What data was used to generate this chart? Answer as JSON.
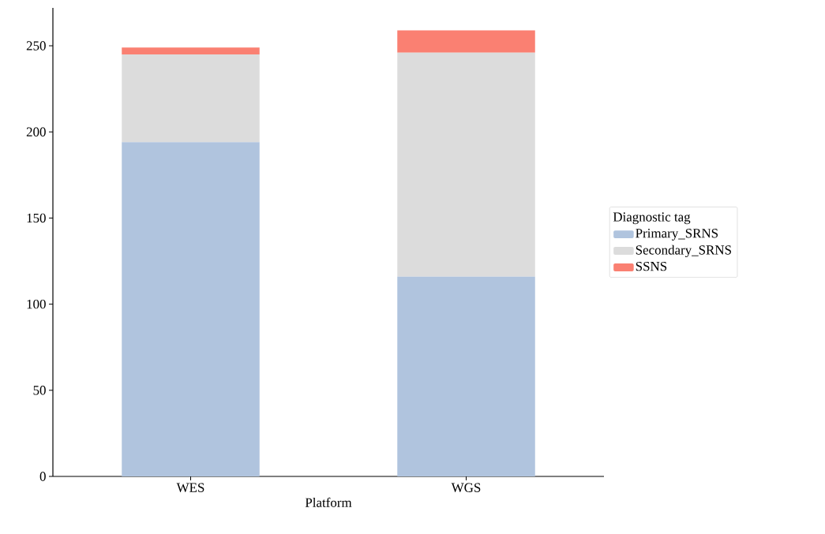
{
  "chart_data": {
    "type": "bar",
    "stacked": true,
    "xlabel": "Platform",
    "legend_title": "Diagnostic tag",
    "legend": "right",
    "categories": [
      "WES",
      "WGS"
    ],
    "series": [
      {
        "name": "Primary_SRNS",
        "color": "#b0c4de",
        "values": [
          194,
          116
        ]
      },
      {
        "name": "Secondary_SRNS",
        "color": "#dcdcdc",
        "values": [
          51,
          130
        ]
      },
      {
        "name": "SSNS",
        "color": "#fa8072",
        "values": [
          4,
          13
        ]
      }
    ],
    "ylim": [
      0,
      272
    ],
    "yticks": [
      0,
      50,
      100,
      150,
      200,
      250
    ],
    "grid": false
  }
}
